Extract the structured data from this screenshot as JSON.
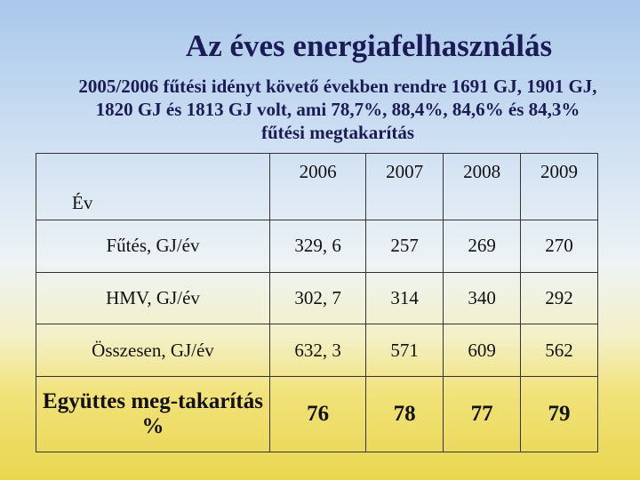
{
  "header": {
    "title": "Az éves energiafelhasználás",
    "subtitle": "2005/2006 fűtési idényt követő években rendre 1691 GJ, 1901 GJ, 1820 GJ és 1813 GJ volt, ami 78,7%, 88,4%, 84,6% és 84,3% fűtési megtakarítás"
  },
  "table": {
    "header": [
      "Év",
      "2006",
      "2007",
      "2008",
      "2009"
    ],
    "rows": [
      [
        "Fűtés, GJ/év",
        "329, 6",
        "257",
        "269",
        "270"
      ],
      [
        "HMV, GJ/év",
        "302, 7",
        "314",
        "340",
        "292"
      ],
      [
        "Összesen, GJ/év",
        "632, 3",
        "571",
        "609",
        "562"
      ],
      [
        "Együttes meg-takarítás %",
        "76",
        "78",
        "77",
        "79"
      ]
    ]
  }
}
